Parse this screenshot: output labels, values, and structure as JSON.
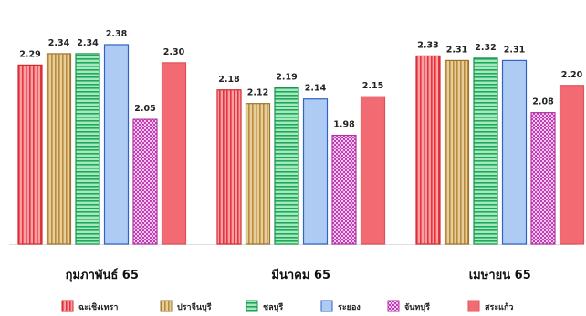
{
  "chart_data": {
    "type": "bar",
    "title": "",
    "xlabel": "",
    "ylabel": "",
    "ylim": [
      1.5,
      2.4
    ],
    "grid": false,
    "legend_position": "bottom",
    "categories": [
      "กุมภาพันธ์ 65",
      "มีนาคม 65",
      "เมษายน 65"
    ],
    "series": [
      {
        "name": "ฉะเชิงเทรา",
        "values": [
          2.29,
          2.18,
          2.33
        ],
        "color": "#f0474f",
        "pattern": "vlines"
      },
      {
        "name": "ปราจีนบุรี",
        "values": [
          2.34,
          2.12,
          2.31
        ],
        "color": "#c9a25b",
        "pattern": "vlines"
      },
      {
        "name": "ชลบุรี",
        "values": [
          2.34,
          2.19,
          2.32
        ],
        "color": "#2fbf6a",
        "pattern": "hlines"
      },
      {
        "name": "ระยอง",
        "values": [
          2.38,
          2.14,
          2.31
        ],
        "color": "#7aa6e8",
        "pattern": "solid"
      },
      {
        "name": "จันทบุรี",
        "values": [
          2.05,
          1.98,
          2.08
        ],
        "color": "#d456c8",
        "pattern": "checker"
      },
      {
        "name": "สระแก้ว",
        "values": [
          2.3,
          2.15,
          2.2
        ],
        "color": "#f26a72",
        "pattern": "solid"
      }
    ]
  }
}
